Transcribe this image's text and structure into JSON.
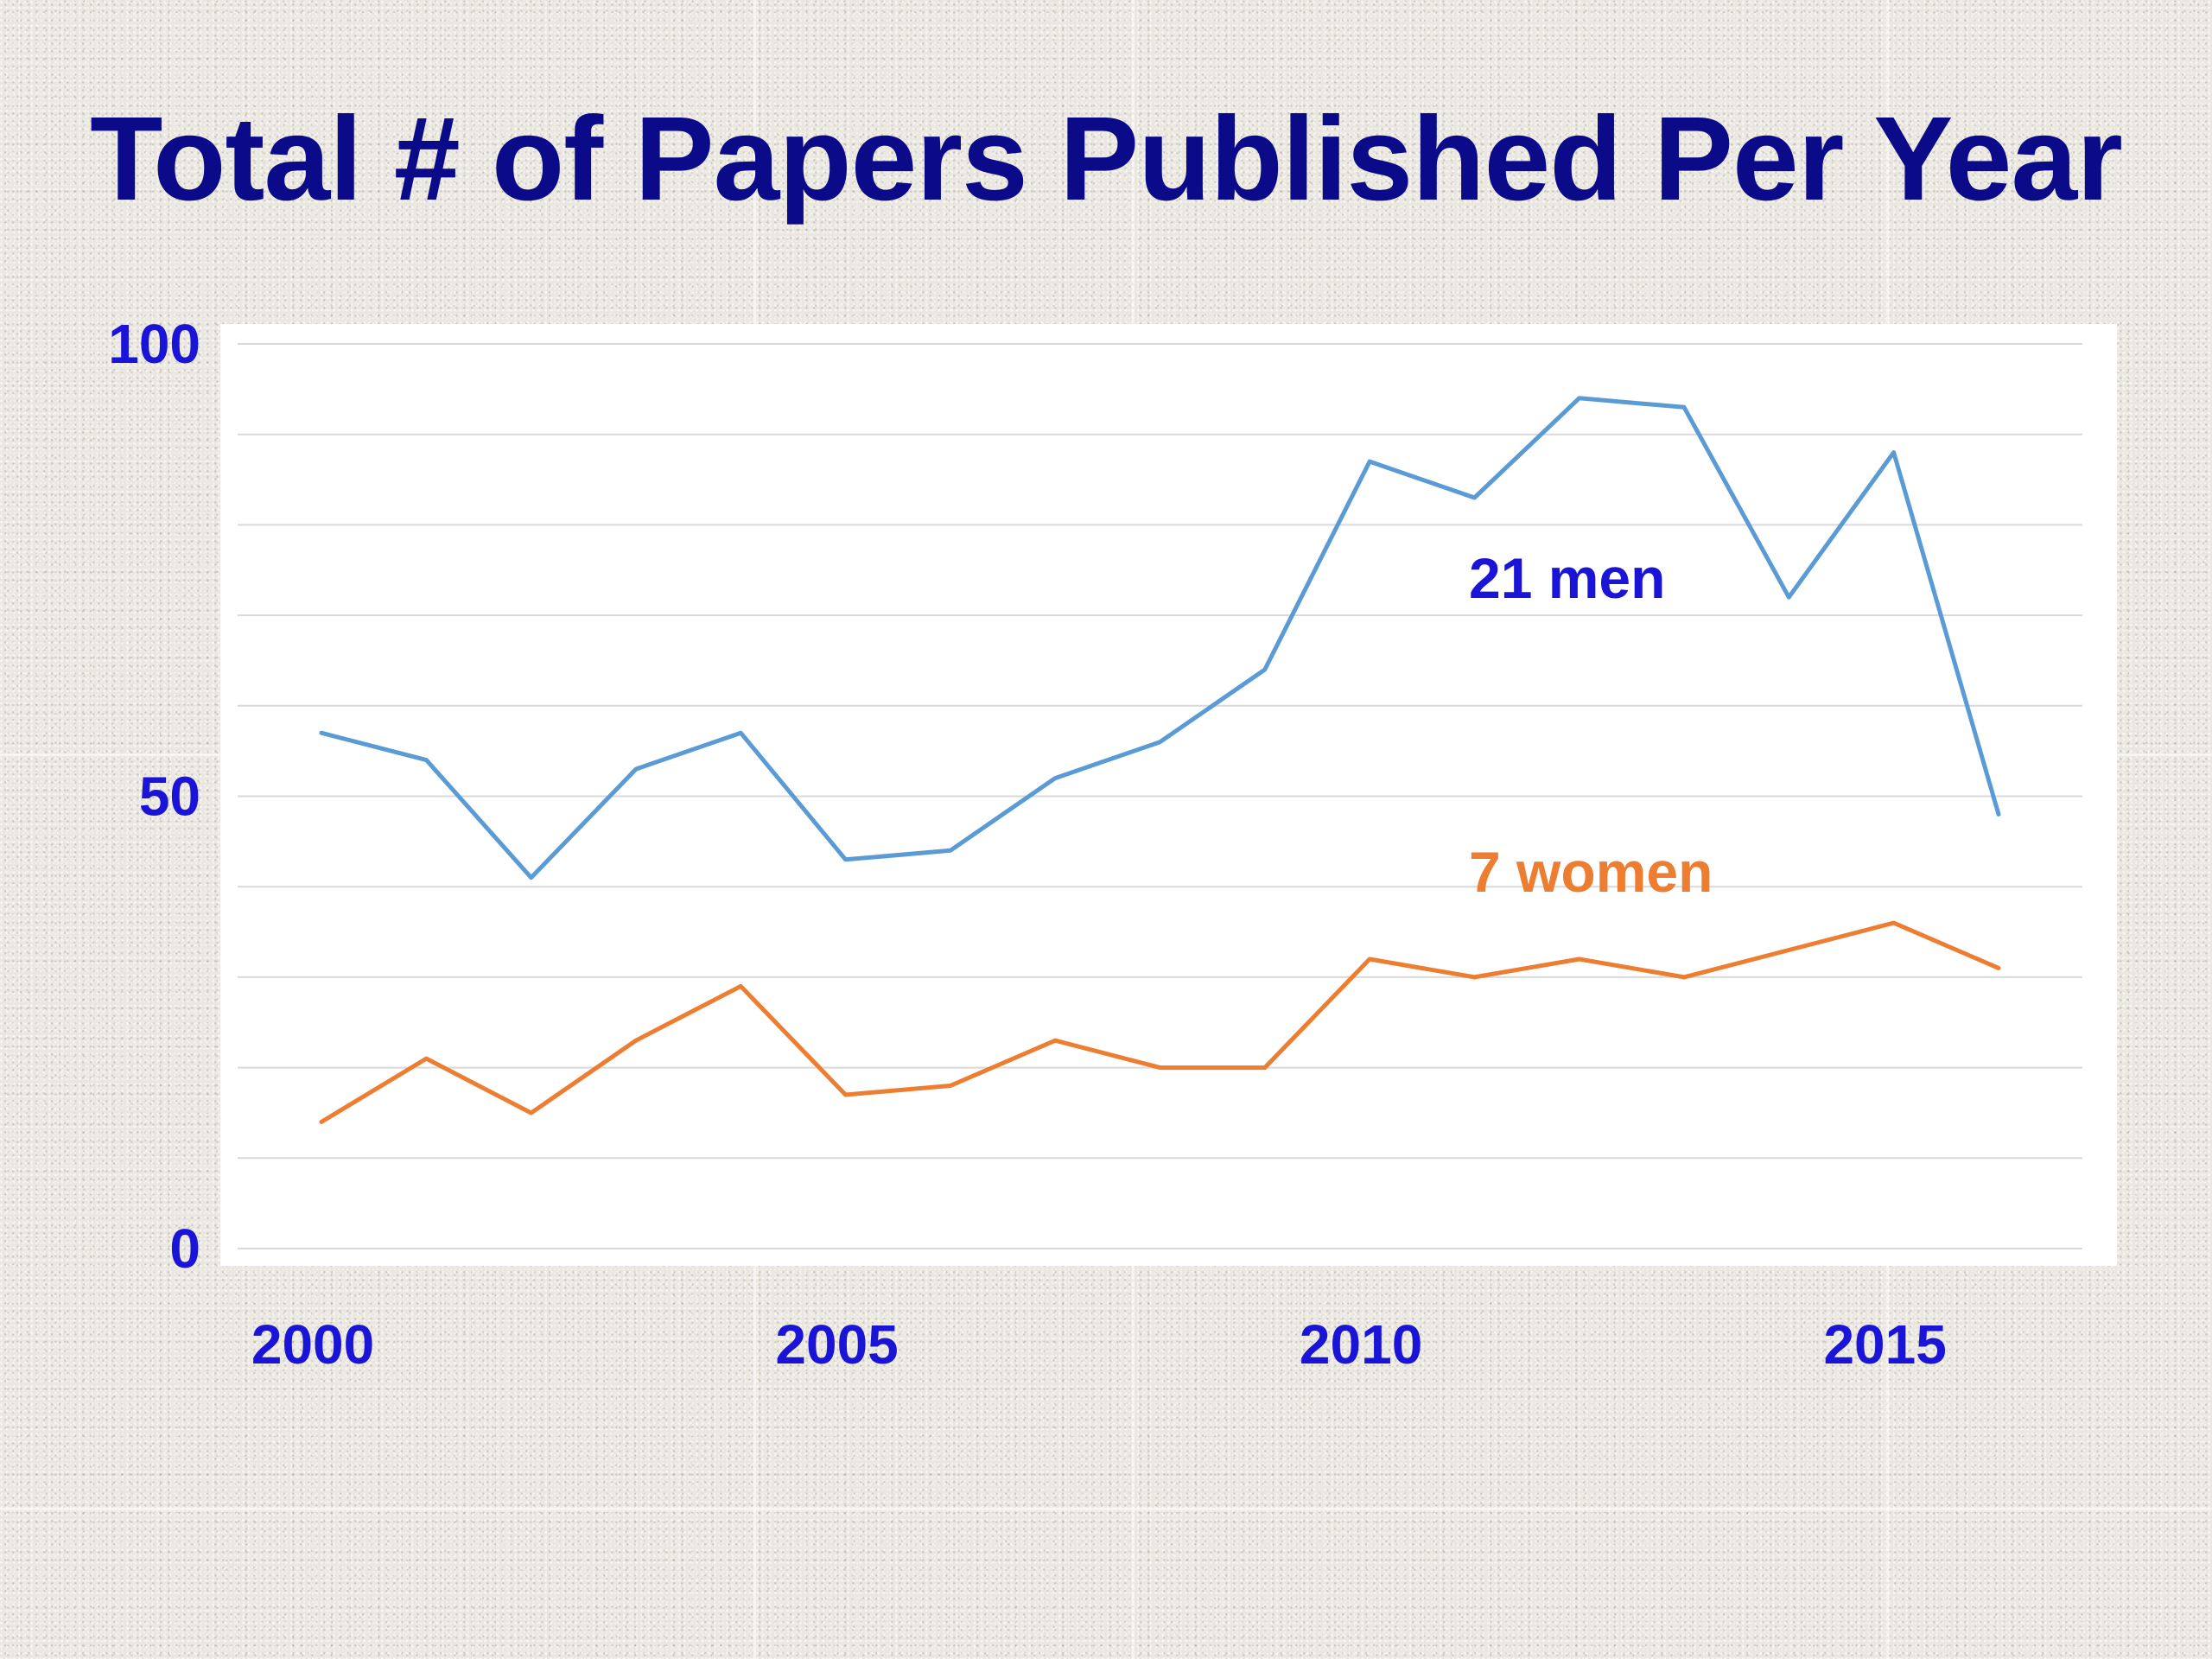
{
  "title": "Total # of Papers Published Per Year",
  "colors": {
    "title": "#0b0b8a",
    "tick_labels": "#1a14d6",
    "men_line": "#5b9bd5",
    "women_line": "#ed7d31",
    "men_label": "#1a14d6",
    "women_label": "#ed7d31",
    "gridline": "#d9d9d9",
    "plot_background": "#ffffff"
  },
  "chart_data": {
    "type": "line",
    "title": "Total # of Papers Published Per Year",
    "xlabel": "",
    "ylabel": "",
    "x": [
      2000,
      2001,
      2002,
      2003,
      2004,
      2005,
      2006,
      2007,
      2008,
      2009,
      2010,
      2011,
      2012,
      2013,
      2014,
      2015,
      2016
    ],
    "xlim": [
      1999.2,
      2016.8
    ],
    "ylim": [
      0,
      100
    ],
    "x_ticks": [
      2000,
      2005,
      2010,
      2015
    ],
    "y_ticks": [
      0,
      50,
      100
    ],
    "grid": true,
    "grid_step": 10,
    "legend": "none",
    "series": [
      {
        "name": "21 men",
        "values": [
          57,
          54,
          41,
          53,
          57,
          43,
          44,
          52,
          56,
          64,
          87,
          83,
          94,
          93,
          72,
          88,
          48
        ]
      },
      {
        "name": "7 women",
        "values": [
          14,
          21,
          15,
          23,
          29,
          17,
          18,
          23,
          20,
          20,
          32,
          30,
          32,
          30,
          33,
          36,
          31
        ]
      }
    ]
  }
}
